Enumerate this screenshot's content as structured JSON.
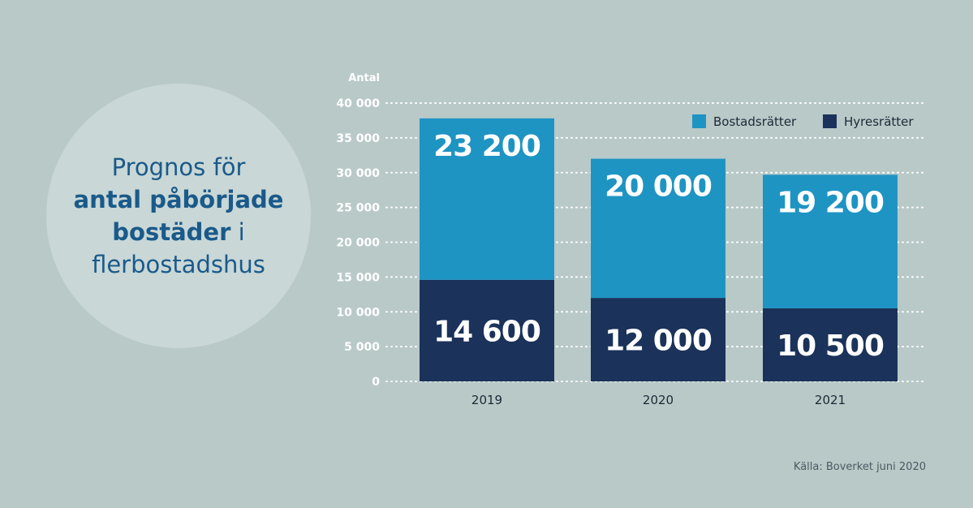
{
  "title": {
    "line1": "Prognos för",
    "line2": "antal påbörjade",
    "line3_bold": "bostäder",
    "line3_rest": " i",
    "line4": "flerbostadshus"
  },
  "source": "Källa: Boverket juni 2020",
  "chart_data": {
    "type": "bar",
    "stacked": true,
    "categories": [
      "2019",
      "2020",
      "2021"
    ],
    "series": [
      {
        "name": "Hyresrätter",
        "values": [
          14600,
          12000,
          10500
        ],
        "labels": [
          "14 600",
          "12 000",
          "10 500"
        ],
        "color": "#1b325a"
      },
      {
        "name": "Bostadsrätter",
        "values": [
          23200,
          20000,
          19200
        ],
        "labels": [
          "23 200",
          "20 000",
          "19 200"
        ],
        "color": "#1e94c3"
      }
    ],
    "ylabel": "Antal",
    "ylim": [
      0,
      40000
    ],
    "yticks": [
      0,
      5000,
      10000,
      15000,
      20000,
      25000,
      30000,
      35000,
      40000
    ],
    "ytick_labels": [
      "0",
      "5 000",
      "10 000",
      "15 000",
      "20 000",
      "25 000",
      "30 000",
      "35 000",
      "40 000"
    ],
    "grid": true,
    "legend": {
      "position": "top-right",
      "order": [
        "Bostadsrätter",
        "Hyresrätter"
      ]
    }
  }
}
